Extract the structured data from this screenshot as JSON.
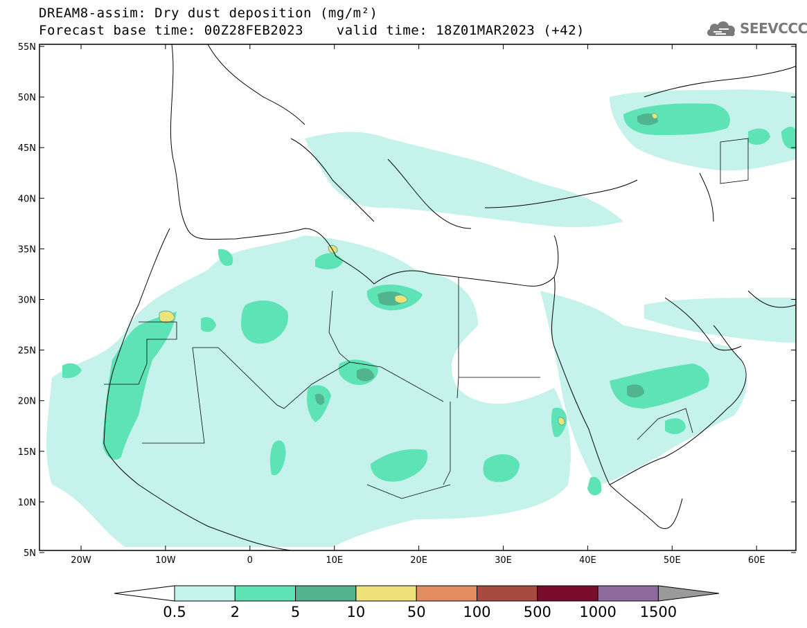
{
  "title": {
    "line1": "DREAM8-assim: Dry dust deposition (mg/m²)",
    "line2": "Forecast base time: 00Z28FEB2023    valid time: 18Z01MAR2023 (+42)"
  },
  "logo": {
    "text": "SEEVCCC",
    "icon": "cloud-icon"
  },
  "axes": {
    "lat_labels": [
      "55N",
      "50N",
      "45N",
      "40N",
      "35N",
      "30N",
      "25N",
      "20N",
      "15N",
      "10N",
      "5N"
    ],
    "lon_labels": [
      "20W",
      "10W",
      "0",
      "10E",
      "20E",
      "30E",
      "40E",
      "50E",
      "60E"
    ]
  },
  "colorbar": {
    "labels": [
      "0.5",
      "2",
      "5",
      "10",
      "50",
      "100",
      "500",
      "1000",
      "1500"
    ],
    "colors": [
      "#c5f2ea",
      "#5ee3b6",
      "#52b48f",
      "#f0e27a",
      "#e58c63",
      "#a84a3f",
      "#7b0d2c",
      "#8e6a9e"
    ],
    "under_color": "#ffffff",
    "over_color": "#9a9a9a"
  },
  "map_colors": {
    "light": "#c5f2ea",
    "medium": "#5ee3b6",
    "dark": "#52b48f",
    "yellow": "#f0e27a"
  }
}
